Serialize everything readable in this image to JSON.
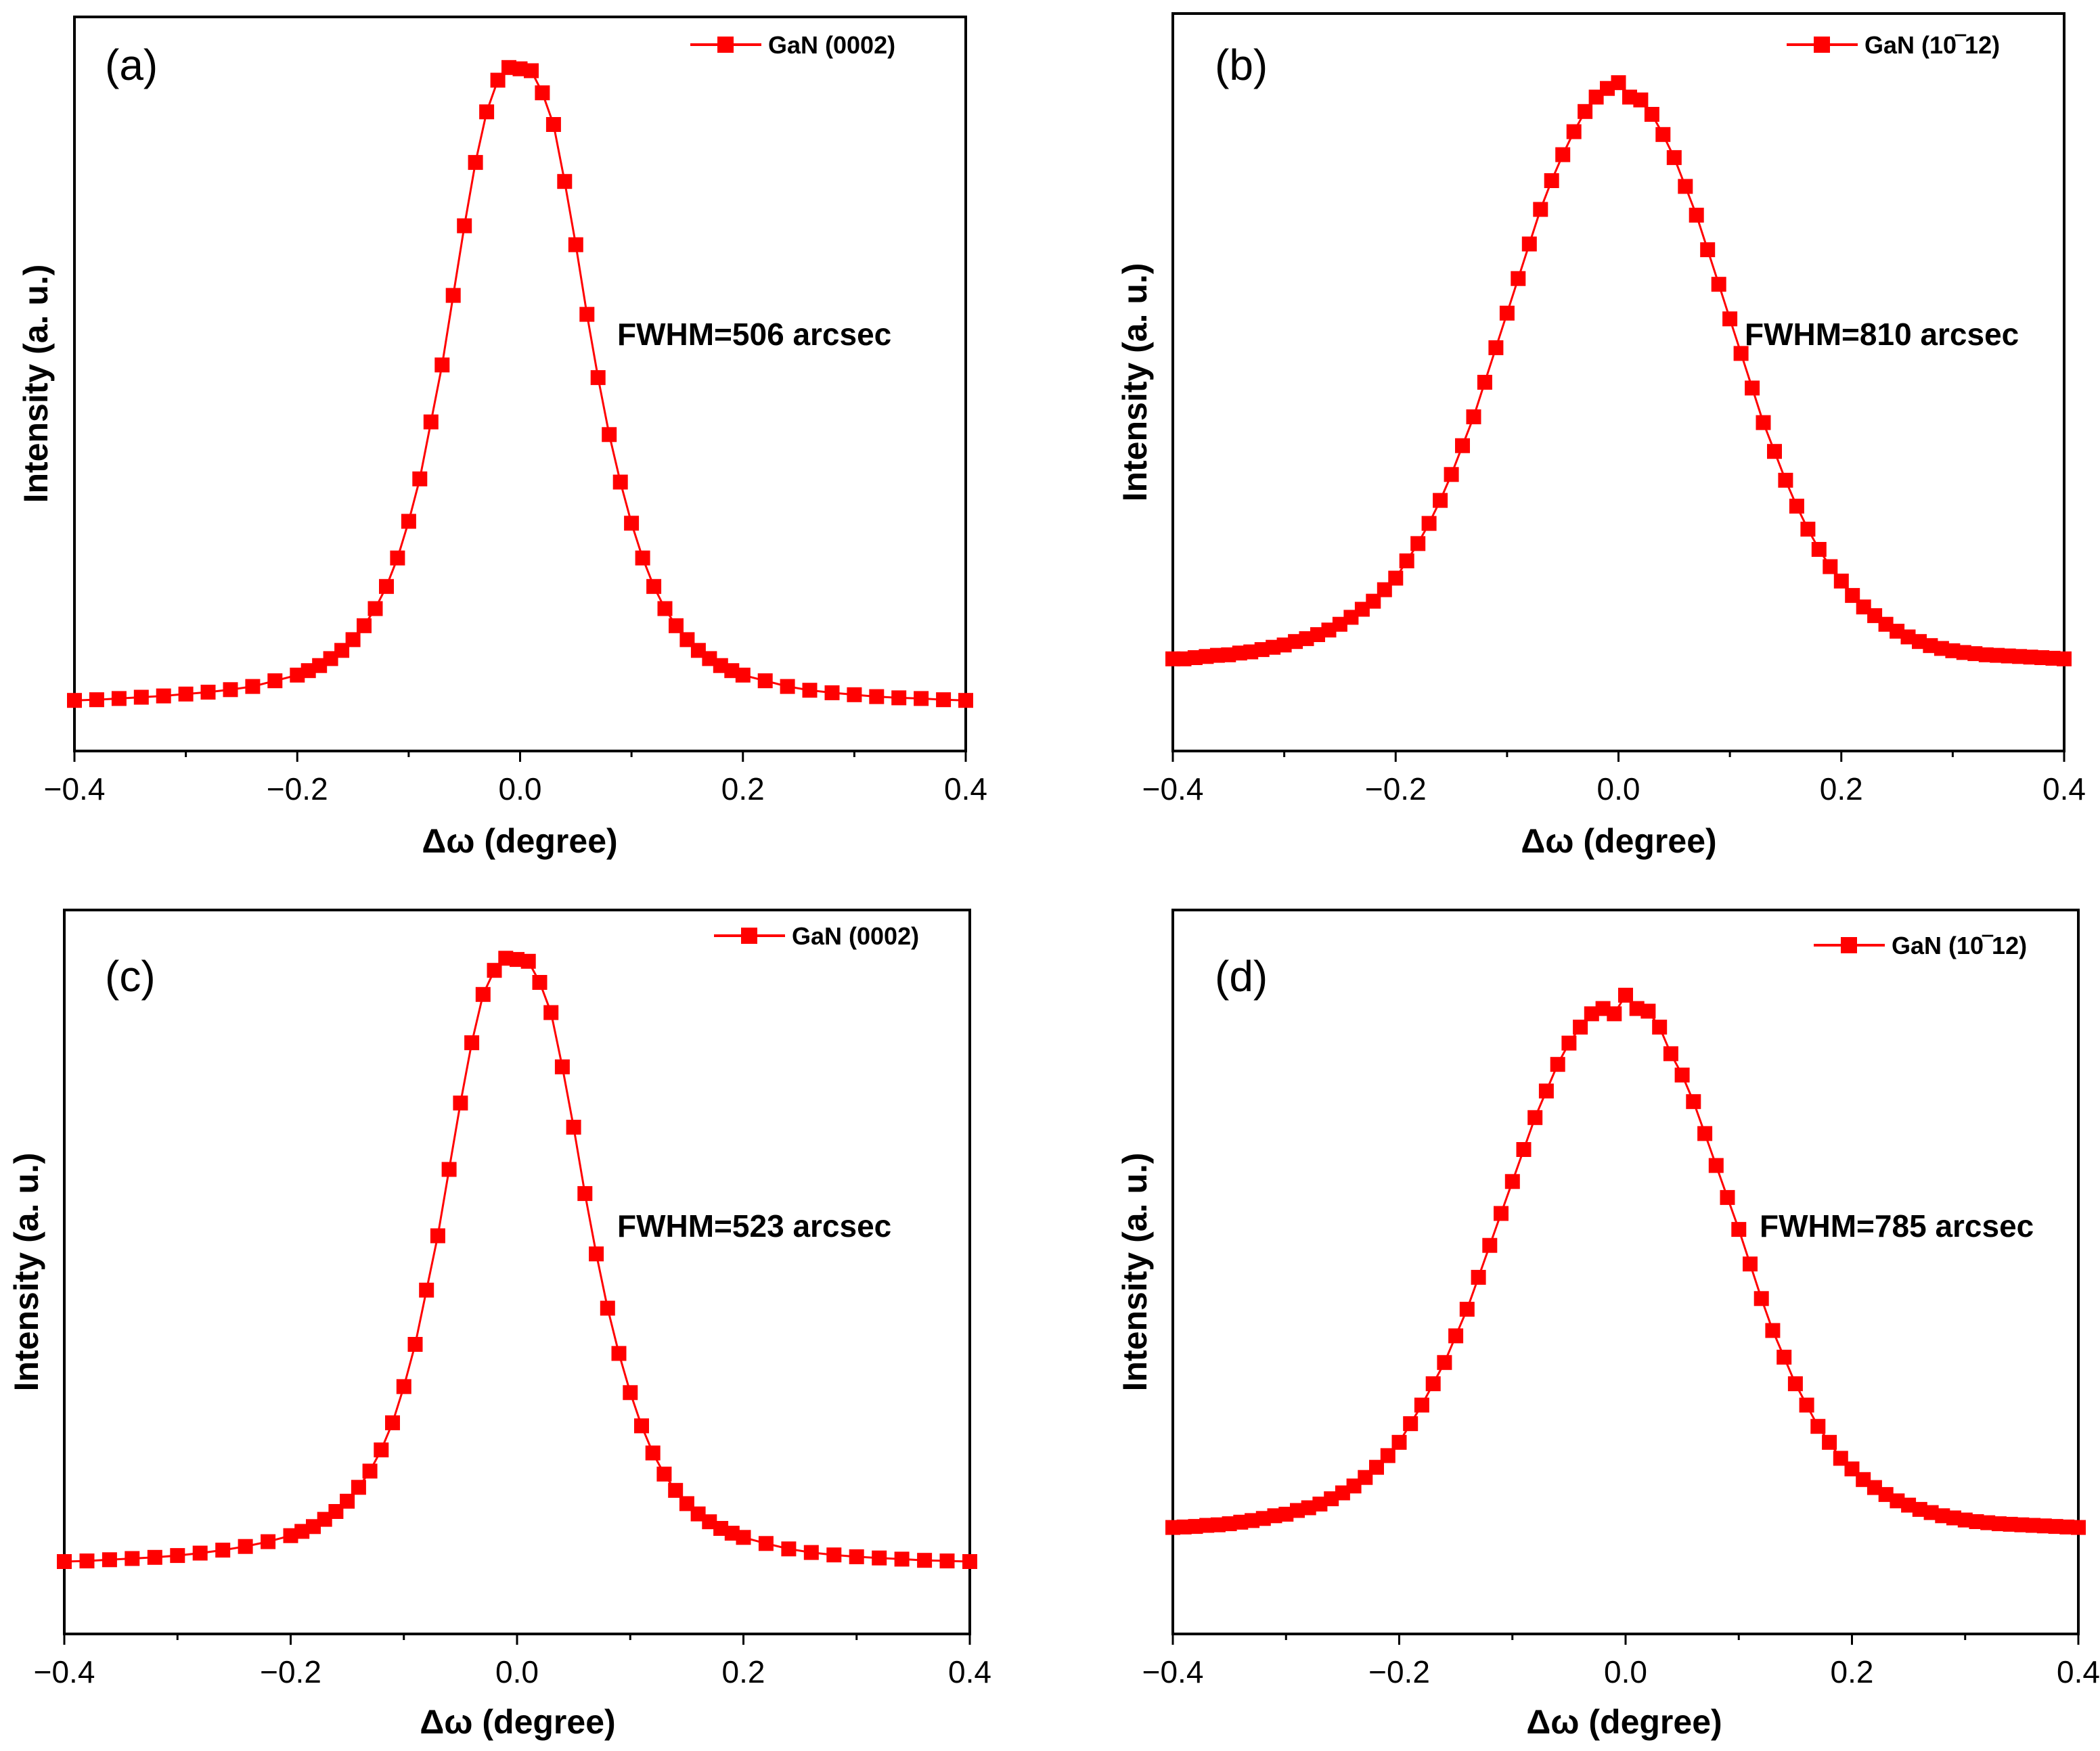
{
  "figure": {
    "colors": {
      "series": "#ff0000",
      "axis": "#000000"
    }
  },
  "chart_data": [
    {
      "type": "line",
      "panel_label": "(a)",
      "legend": "GaN (0002)",
      "annotation": "FWHM=506 arcsec",
      "xlabel": "Δω (degree)",
      "ylabel": "Intensity (a. u.)",
      "xlim": [
        -0.4,
        0.4
      ],
      "ylim": [
        -0.08,
        1.08
      ],
      "xticks": [
        "−0.4",
        "−0.2",
        "0.0",
        "0.2",
        "0.4"
      ],
      "xtick_values": [
        -0.4,
        -0.2,
        0.0,
        0.2,
        0.4
      ],
      "series": [
        {
          "name": "GaN (0002)",
          "marker": "square",
          "x": [
            -0.4,
            -0.38,
            -0.36,
            -0.34,
            -0.32,
            -0.3,
            -0.28,
            -0.26,
            -0.24,
            -0.22,
            -0.2,
            -0.19,
            -0.18,
            -0.17,
            -0.16,
            -0.15,
            -0.14,
            -0.13,
            -0.12,
            -0.11,
            -0.1,
            -0.09,
            -0.08,
            -0.07,
            -0.06,
            -0.05,
            -0.04,
            -0.03,
            -0.02,
            -0.01,
            0.0,
            0.01,
            0.02,
            0.03,
            0.04,
            0.05,
            0.06,
            0.07,
            0.08,
            0.09,
            0.1,
            0.11,
            0.12,
            0.13,
            0.14,
            0.15,
            0.16,
            0.17,
            0.18,
            0.19,
            0.2,
            0.22,
            0.24,
            0.26,
            0.28,
            0.3,
            0.32,
            0.34,
            0.36,
            0.38,
            0.4
          ],
          "y": [
            0.0,
            0.001,
            0.003,
            0.005,
            0.007,
            0.01,
            0.013,
            0.017,
            0.022,
            0.031,
            0.04,
            0.047,
            0.055,
            0.066,
            0.079,
            0.096,
            0.118,
            0.145,
            0.18,
            0.225,
            0.283,
            0.35,
            0.44,
            0.53,
            0.64,
            0.75,
            0.85,
            0.93,
            0.98,
            1.0,
            0.998,
            0.995,
            0.96,
            0.91,
            0.82,
            0.72,
            0.61,
            0.51,
            0.42,
            0.345,
            0.28,
            0.225,
            0.18,
            0.145,
            0.118,
            0.096,
            0.079,
            0.066,
            0.055,
            0.047,
            0.04,
            0.031,
            0.022,
            0.016,
            0.012,
            0.009,
            0.006,
            0.004,
            0.003,
            0.001,
            0.0
          ]
        }
      ]
    },
    {
      "type": "line",
      "panel_label": "(b)",
      "legend": "GaN (10‾12)",
      "annotation": "FWHM=810 arcsec",
      "xlabel": "Δω (degree)",
      "ylabel": "Intensity (a. u.)",
      "xlim": [
        -0.4,
        0.4
      ],
      "ylim": [
        -0.16,
        1.12
      ],
      "xticks": [
        "−0.4",
        "−0.2",
        "0.0",
        "0.2",
        "0.4"
      ],
      "xtick_values": [
        -0.4,
        -0.2,
        0.0,
        0.2,
        0.4
      ],
      "series": [
        {
          "name": "GaN (10‾12)",
          "marker": "square",
          "x": [
            -0.4,
            -0.39,
            -0.38,
            -0.37,
            -0.36,
            -0.35,
            -0.34,
            -0.33,
            -0.32,
            -0.31,
            -0.3,
            -0.29,
            -0.28,
            -0.27,
            -0.26,
            -0.25,
            -0.24,
            -0.23,
            -0.22,
            -0.21,
            -0.2,
            -0.19,
            -0.18,
            -0.17,
            -0.16,
            -0.15,
            -0.14,
            -0.13,
            -0.12,
            -0.11,
            -0.1,
            -0.09,
            -0.08,
            -0.07,
            -0.06,
            -0.05,
            -0.04,
            -0.03,
            -0.02,
            -0.01,
            0.0,
            0.01,
            0.02,
            0.03,
            0.04,
            0.05,
            0.06,
            0.07,
            0.08,
            0.09,
            0.1,
            0.11,
            0.12,
            0.13,
            0.14,
            0.15,
            0.16,
            0.17,
            0.18,
            0.19,
            0.2,
            0.21,
            0.22,
            0.23,
            0.24,
            0.25,
            0.26,
            0.27,
            0.28,
            0.29,
            0.3,
            0.31,
            0.32,
            0.33,
            0.34,
            0.35,
            0.36,
            0.37,
            0.38,
            0.39,
            0.4
          ],
          "y": [
            0.0,
            0.0,
            0.002,
            0.004,
            0.006,
            0.007,
            0.01,
            0.012,
            0.016,
            0.02,
            0.024,
            0.03,
            0.035,
            0.042,
            0.05,
            0.06,
            0.072,
            0.086,
            0.1,
            0.12,
            0.14,
            0.17,
            0.2,
            0.235,
            0.275,
            0.32,
            0.37,
            0.42,
            0.48,
            0.54,
            0.6,
            0.66,
            0.72,
            0.78,
            0.83,
            0.875,
            0.915,
            0.95,
            0.975,
            0.99,
            1.0,
            0.975,
            0.97,
            0.945,
            0.91,
            0.87,
            0.82,
            0.77,
            0.71,
            0.65,
            0.59,
            0.53,
            0.47,
            0.41,
            0.36,
            0.31,
            0.265,
            0.225,
            0.19,
            0.16,
            0.135,
            0.11,
            0.09,
            0.075,
            0.06,
            0.048,
            0.038,
            0.03,
            0.023,
            0.018,
            0.014,
            0.011,
            0.009,
            0.007,
            0.006,
            0.005,
            0.004,
            0.003,
            0.002,
            0.001,
            0.0
          ]
        }
      ]
    },
    {
      "type": "line",
      "panel_label": "(c)",
      "legend": "GaN (0002)",
      "annotation": "FWHM=523 arcsec",
      "xlabel": "Δω (degree)",
      "ylabel": "Intensity (a. u.)",
      "xlim": [
        -0.4,
        0.4
      ],
      "ylim": [
        -0.12,
        1.08
      ],
      "xticks": [
        "−0.4",
        "−0.2",
        "0.0",
        "0.2",
        "0.4"
      ],
      "xtick_values": [
        -0.4,
        -0.2,
        0.0,
        0.2,
        0.4
      ],
      "series": [
        {
          "name": "GaN (0002)",
          "marker": "square",
          "x": [
            -0.4,
            -0.38,
            -0.36,
            -0.34,
            -0.32,
            -0.3,
            -0.28,
            -0.26,
            -0.24,
            -0.22,
            -0.2,
            -0.19,
            -0.18,
            -0.17,
            -0.16,
            -0.15,
            -0.14,
            -0.13,
            -0.12,
            -0.11,
            -0.1,
            -0.09,
            -0.08,
            -0.07,
            -0.06,
            -0.05,
            -0.04,
            -0.03,
            -0.02,
            -0.01,
            0.0,
            0.01,
            0.02,
            0.03,
            0.04,
            0.05,
            0.06,
            0.07,
            0.08,
            0.09,
            0.1,
            0.11,
            0.12,
            0.13,
            0.14,
            0.15,
            0.16,
            0.17,
            0.18,
            0.19,
            0.2,
            0.22,
            0.24,
            0.26,
            0.28,
            0.3,
            0.32,
            0.34,
            0.36,
            0.38,
            0.4
          ],
          "y": [
            0.0,
            0.001,
            0.003,
            0.005,
            0.007,
            0.01,
            0.014,
            0.019,
            0.025,
            0.033,
            0.043,
            0.05,
            0.058,
            0.07,
            0.083,
            0.1,
            0.123,
            0.15,
            0.185,
            0.23,
            0.29,
            0.36,
            0.45,
            0.54,
            0.65,
            0.76,
            0.86,
            0.94,
            0.98,
            1.0,
            0.998,
            0.995,
            0.96,
            0.91,
            0.82,
            0.72,
            0.61,
            0.51,
            0.42,
            0.345,
            0.28,
            0.225,
            0.18,
            0.145,
            0.118,
            0.096,
            0.079,
            0.066,
            0.055,
            0.047,
            0.04,
            0.03,
            0.021,
            0.015,
            0.011,
            0.008,
            0.006,
            0.004,
            0.002,
            0.001,
            0.0
          ]
        }
      ]
    },
    {
      "type": "line",
      "panel_label": "(d)",
      "legend": "GaN (10‾12)",
      "annotation": "FWHM=785 arcsec",
      "xlabel": "Δω (degree)",
      "ylabel": "Intensity (a. u.)",
      "xlim": [
        -0.4,
        0.4
      ],
      "ylim": [
        -0.2,
        1.16
      ],
      "xticks": [
        "−0.4",
        "−0.2",
        "0.0",
        "0.2",
        "0.4"
      ],
      "xtick_values": [
        -0.4,
        -0.2,
        0.0,
        0.2,
        0.4
      ],
      "series": [
        {
          "name": "GaN (10‾12)",
          "marker": "square",
          "x": [
            -0.4,
            -0.39,
            -0.38,
            -0.37,
            -0.36,
            -0.35,
            -0.34,
            -0.33,
            -0.32,
            -0.31,
            -0.3,
            -0.29,
            -0.28,
            -0.27,
            -0.26,
            -0.25,
            -0.24,
            -0.23,
            -0.22,
            -0.21,
            -0.2,
            -0.19,
            -0.18,
            -0.17,
            -0.16,
            -0.15,
            -0.14,
            -0.13,
            -0.12,
            -0.11,
            -0.1,
            -0.09,
            -0.08,
            -0.07,
            -0.06,
            -0.05,
            -0.04,
            -0.03,
            -0.02,
            -0.01,
            0.0,
            0.01,
            0.02,
            0.03,
            0.04,
            0.05,
            0.06,
            0.07,
            0.08,
            0.09,
            0.1,
            0.11,
            0.12,
            0.13,
            0.14,
            0.15,
            0.16,
            0.17,
            0.18,
            0.19,
            0.2,
            0.21,
            0.22,
            0.23,
            0.24,
            0.25,
            0.26,
            0.27,
            0.28,
            0.29,
            0.3,
            0.31,
            0.32,
            0.33,
            0.34,
            0.35,
            0.36,
            0.37,
            0.38,
            0.39,
            0.4
          ],
          "y": [
            0.0,
            0.001,
            0.002,
            0.004,
            0.005,
            0.007,
            0.01,
            0.013,
            0.017,
            0.022,
            0.025,
            0.032,
            0.037,
            0.044,
            0.054,
            0.065,
            0.078,
            0.094,
            0.113,
            0.135,
            0.16,
            0.195,
            0.23,
            0.27,
            0.31,
            0.36,
            0.41,
            0.47,
            0.53,
            0.59,
            0.65,
            0.71,
            0.77,
            0.82,
            0.87,
            0.91,
            0.94,
            0.965,
            0.975,
            0.965,
            1.0,
            0.975,
            0.97,
            0.94,
            0.89,
            0.85,
            0.8,
            0.74,
            0.68,
            0.62,
            0.56,
            0.495,
            0.43,
            0.37,
            0.32,
            0.27,
            0.23,
            0.19,
            0.16,
            0.13,
            0.11,
            0.09,
            0.075,
            0.062,
            0.05,
            0.042,
            0.034,
            0.028,
            0.022,
            0.018,
            0.014,
            0.011,
            0.009,
            0.007,
            0.006,
            0.005,
            0.004,
            0.003,
            0.002,
            0.001,
            0.0
          ]
        }
      ]
    }
  ]
}
